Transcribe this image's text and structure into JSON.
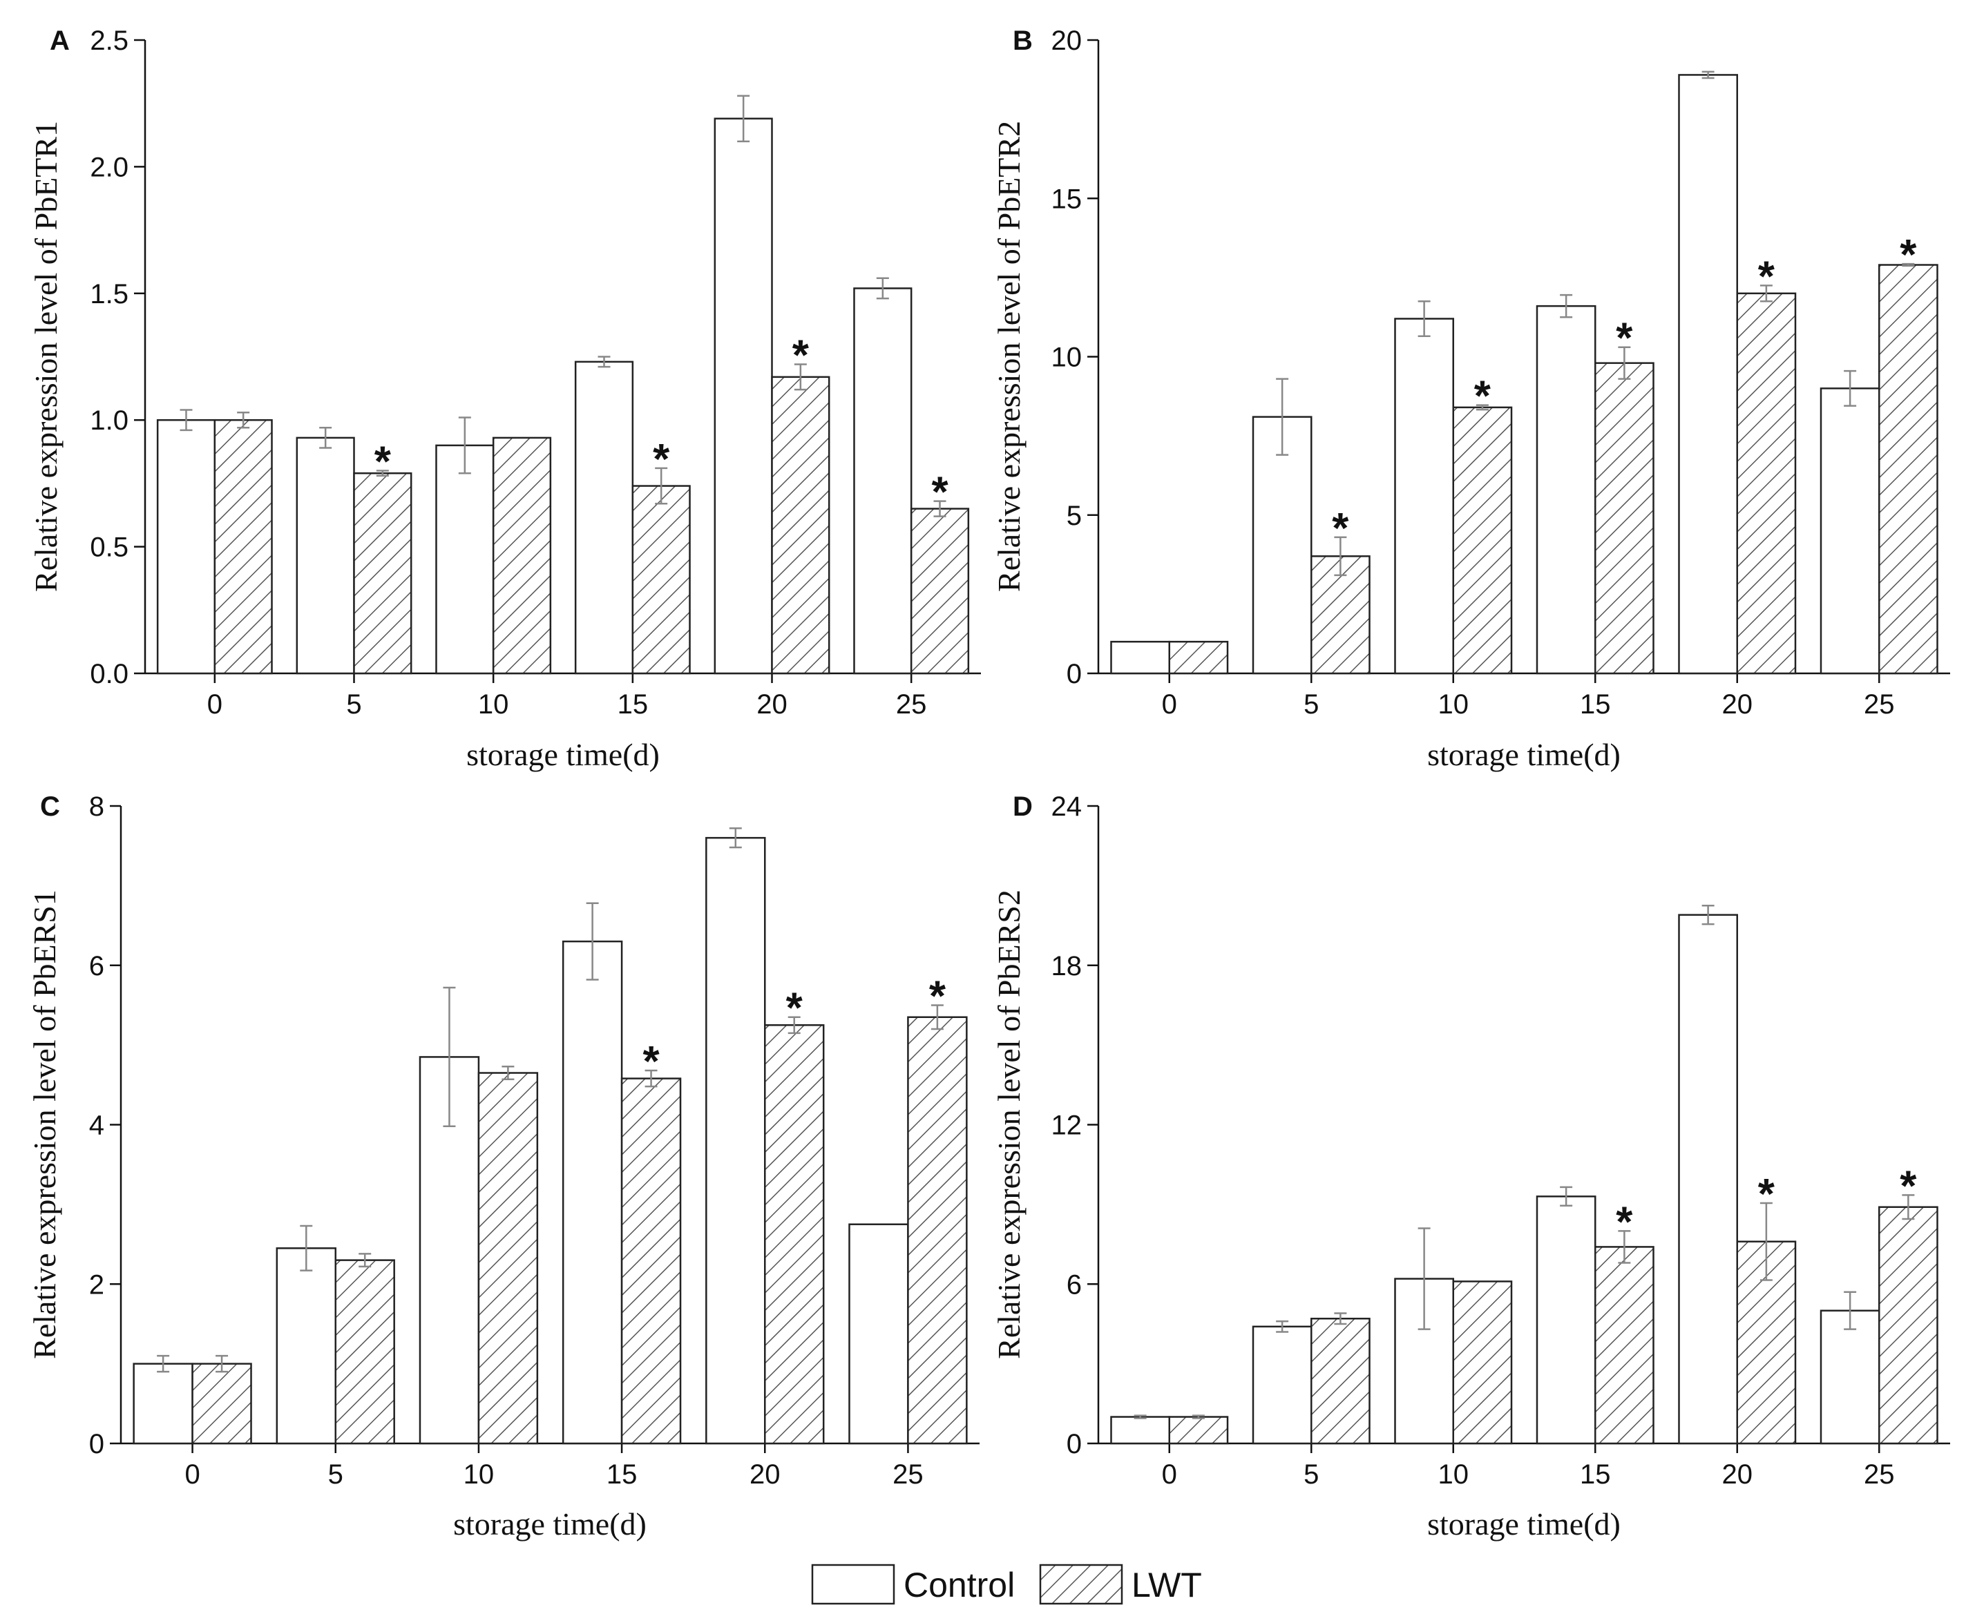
{
  "chart_data": [
    {
      "type": "bar",
      "panel": "A",
      "categories": [
        "0",
        "5",
        "10",
        "15",
        "20",
        "25"
      ],
      "xlabel": "storage time(d)",
      "ylabel": "Relative expression level of PbETR1",
      "ylim": [
        0,
        2.5
      ],
      "yticks": [
        0,
        0.5,
        1,
        1.5,
        2,
        2.5
      ],
      "ytick_labels": [
        "0.0",
        "0.5",
        "1.0",
        "1.5",
        "2.0",
        "2.5"
      ],
      "series": [
        {
          "name": "Control",
          "values": [
            1.0,
            0.93,
            0.9,
            1.23,
            2.19,
            1.52
          ],
          "errors": [
            0.04,
            0.04,
            0.11,
            0.02,
            0.09,
            0.04
          ],
          "significant": [
            false,
            false,
            false,
            false,
            false,
            false
          ]
        },
        {
          "name": "LWT",
          "values": [
            1.0,
            0.79,
            0.93,
            0.74,
            1.17,
            0.65
          ],
          "errors": [
            0.03,
            0.01,
            0.0,
            0.07,
            0.05,
            0.03
          ],
          "significant": [
            false,
            true,
            false,
            true,
            true,
            true
          ]
        }
      ]
    },
    {
      "type": "bar",
      "panel": "B",
      "categories": [
        "0",
        "5",
        "10",
        "15",
        "20",
        "25"
      ],
      "xlabel": "storage time(d)",
      "ylabel": "Relative expression level of PbETR2",
      "ylim": [
        0,
        20
      ],
      "yticks": [
        0,
        5,
        10,
        15,
        20
      ],
      "ytick_labels": [
        "0",
        "5",
        "10",
        "15",
        "20"
      ],
      "series": [
        {
          "name": "Control",
          "values": [
            1.0,
            8.1,
            11.2,
            11.6,
            18.9,
            9.0
          ],
          "errors": [
            0.0,
            1.2,
            0.55,
            0.35,
            0.1,
            0.55
          ],
          "significant": [
            false,
            false,
            false,
            false,
            false,
            false
          ]
        },
        {
          "name": "LWT",
          "values": [
            1.0,
            3.7,
            8.4,
            9.8,
            12.0,
            12.9
          ],
          "errors": [
            0.0,
            0.6,
            0.07,
            0.5,
            0.25,
            0.03
          ],
          "significant": [
            false,
            true,
            true,
            true,
            true,
            true
          ]
        }
      ]
    },
    {
      "type": "bar",
      "panel": "C",
      "categories": [
        "0",
        "5",
        "10",
        "15",
        "20",
        "25"
      ],
      "xlabel": "storage time(d)",
      "ylabel": "Relative expression level of PbERS1",
      "ylim": [
        0,
        8
      ],
      "yticks": [
        0,
        2,
        4,
        6,
        8
      ],
      "ytick_labels": [
        "0",
        "2",
        "4",
        "6",
        "8"
      ],
      "series": [
        {
          "name": "Control",
          "values": [
            1.0,
            2.45,
            4.85,
            6.3,
            7.6,
            2.75
          ],
          "errors": [
            0.1,
            0.28,
            0.87,
            0.48,
            0.12,
            0.0
          ],
          "significant": [
            false,
            false,
            false,
            false,
            false,
            false
          ]
        },
        {
          "name": "LWT",
          "values": [
            1.0,
            2.3,
            4.65,
            4.58,
            5.25,
            5.35
          ],
          "errors": [
            0.1,
            0.08,
            0.08,
            0.1,
            0.1,
            0.15
          ],
          "significant": [
            false,
            false,
            false,
            true,
            true,
            true
          ]
        }
      ]
    },
    {
      "type": "bar",
      "panel": "D",
      "categories": [
        "0",
        "5",
        "10",
        "15",
        "20",
        "25"
      ],
      "xlabel": "storage time(d)",
      "ylabel": "Relative expression level of PbERS2",
      "ylim": [
        0,
        24
      ],
      "yticks": [
        0,
        6,
        12,
        18,
        24
      ],
      "ytick_labels": [
        "0",
        "6",
        "12",
        "18",
        "24"
      ],
      "series": [
        {
          "name": "Control",
          "values": [
            1.0,
            4.4,
            6.2,
            9.3,
            19.9,
            5.0
          ],
          "errors": [
            0.05,
            0.2,
            1.9,
            0.35,
            0.35,
            0.7
          ],
          "significant": [
            false,
            false,
            false,
            false,
            false,
            false
          ]
        },
        {
          "name": "LWT",
          "values": [
            1.0,
            4.7,
            6.1,
            7.4,
            7.6,
            8.9
          ],
          "errors": [
            0.05,
            0.2,
            0.0,
            0.6,
            1.45,
            0.45
          ],
          "significant": [
            false,
            false,
            false,
            true,
            true,
            true
          ]
        }
      ]
    }
  ],
  "legend": {
    "placement": "bottom-center",
    "items": [
      {
        "label": "Control",
        "pattern": "open"
      },
      {
        "label": "LWT",
        "pattern": "hatched"
      }
    ]
  },
  "significance_marker": "*",
  "colors": {
    "bar_edge": "#222222",
    "error_bar": "#888888",
    "axis": "#111111",
    "hatch": "#555555"
  }
}
